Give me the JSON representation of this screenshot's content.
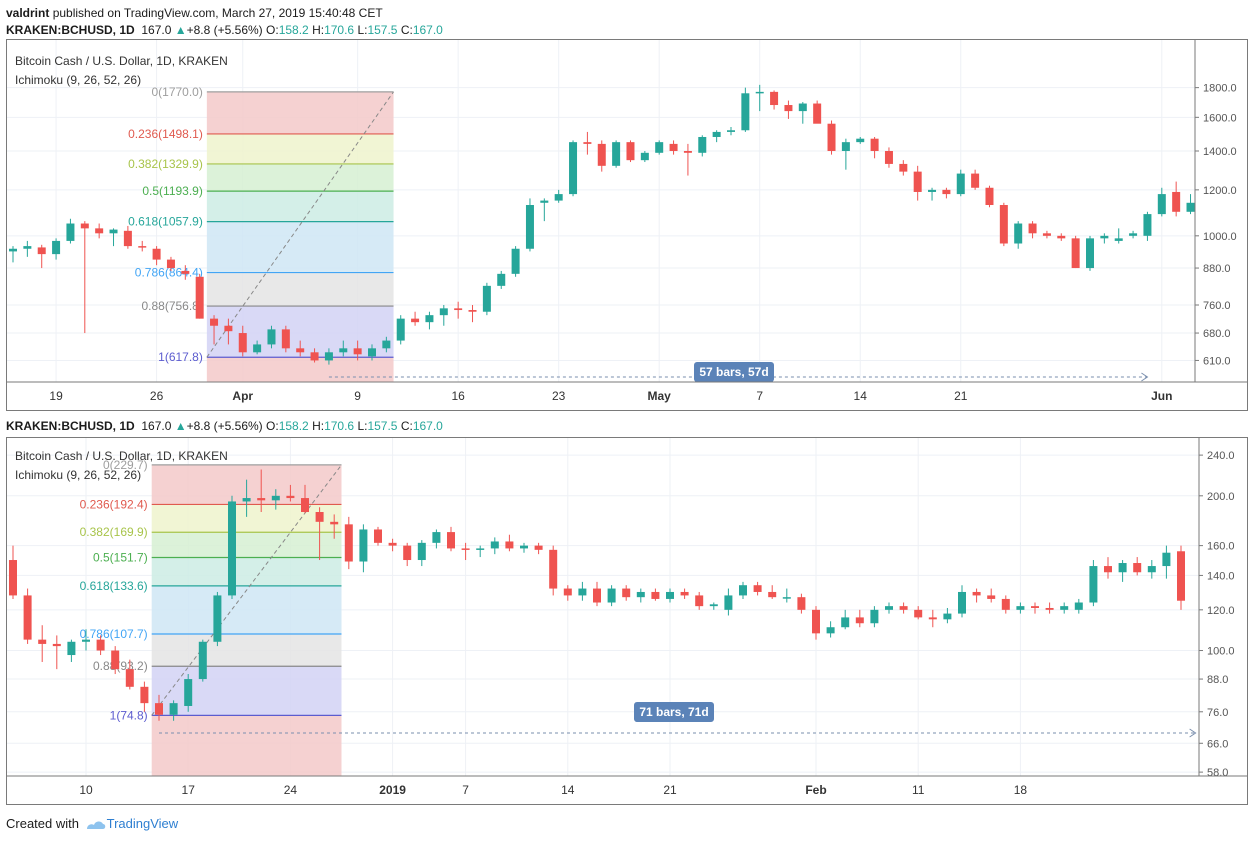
{
  "header": {
    "author": "valdrint",
    "published": "published on TradingView.com, March 27, 2019 15:40:48 CET"
  },
  "symbol_line": {
    "symbol": "KRAKEN:BCHUSD, 1D",
    "last": "167.0",
    "change": "+8.8 (+5.56%)",
    "o_label": "O:",
    "o": "158.2",
    "h_label": "H:",
    "h": "170.6",
    "l_label": "L:",
    "l": "157.5",
    "c_label": "C:",
    "c": "167.0"
  },
  "footer": {
    "created_with": "Created with",
    "brand": "TradingView"
  },
  "colors": {
    "up": "#26a69a",
    "down": "#ef5350",
    "grid": "#eef1f6",
    "axis_text": "#555555"
  },
  "chart_data": [
    {
      "type": "candlestick",
      "legend": [
        "Bitcoin Cash / U.S. Dollar, 1D, KRAKEN",
        "Ichimoku (9, 26, 52, 26)"
      ],
      "y_scale": "log",
      "ylim": [
        560,
        1900
      ],
      "y_ticks": [
        "1800.0",
        "1600.0",
        "1400.0",
        "1200.0",
        "1000.0",
        "880.0",
        "760.0",
        "680.0",
        "610.0"
      ],
      "x_ticks": [
        "19",
        "26",
        "Apr",
        "9",
        "16",
        "23",
        "May",
        "7",
        "14",
        "21",
        "Jun"
      ],
      "x_tick_index": [
        3,
        10,
        16,
        24,
        31,
        38,
        45,
        52,
        59,
        66,
        80
      ],
      "fib_levels": [
        {
          "ratio": "0",
          "price": 1770.0,
          "label": "0(1770.0)",
          "color": "#9e9e9e",
          "fill": "#f3c9c9"
        },
        {
          "ratio": "0.236",
          "price": 1498.1,
          "label": "0.236(1498.1)",
          "color": "#e05a4f",
          "fill": "#eef3cc"
        },
        {
          "ratio": "0.382",
          "price": 1329.9,
          "label": "0.382(1329.9)",
          "color": "#a8c44a",
          "fill": "#d6f0d2"
        },
        {
          "ratio": "0.5",
          "price": 1193.9,
          "label": "0.5(1193.9)",
          "color": "#4caf50",
          "fill": "#cdece4"
        },
        {
          "ratio": "0.618",
          "price": 1057.9,
          "label": "0.618(1057.9)",
          "color": "#26a69a",
          "fill": "#cfe6f5"
        },
        {
          "ratio": "0.786",
          "price": 864.4,
          "label": "0.786(864.4)",
          "color": "#42a5f5",
          "fill": "#e4e4e4"
        },
        {
          "ratio": "0.88",
          "price": 756.8,
          "label": "0.88(756.8)",
          "color": "#888888",
          "fill": "#d2d2f5"
        },
        {
          "ratio": "1",
          "price": 617.8,
          "label": "1(617.8)",
          "color": "#5c5ccf",
          "fill": ""
        }
      ],
      "fib_start_index": 14,
      "fib_end_index": 26,
      "range_label": "57 bars, 57d",
      "range_start_index": 22,
      "range_end_index": 79,
      "candles": [
        [
          940,
          960,
          900,
          950
        ],
        [
          950,
          980,
          920,
          960
        ],
        [
          955,
          965,
          880,
          930
        ],
        [
          930,
          990,
          910,
          980
        ],
        [
          980,
          1070,
          970,
          1050
        ],
        [
          1050,
          1060,
          680,
          1030
        ],
        [
          1030,
          1050,
          990,
          1010
        ],
        [
          1010,
          1030,
          960,
          1025
        ],
        [
          1020,
          1040,
          950,
          960
        ],
        [
          960,
          980,
          940,
          955
        ],
        [
          950,
          960,
          890,
          910
        ],
        [
          910,
          920,
          870,
          880
        ],
        [
          870,
          890,
          840,
          860
        ],
        [
          850,
          860,
          720,
          720
        ],
        [
          720,
          730,
          650,
          700
        ],
        [
          700,
          720,
          650,
          685
        ],
        [
          680,
          700,
          620,
          630
        ],
        [
          630,
          660,
          625,
          650
        ],
        [
          650,
          700,
          640,
          690
        ],
        [
          690,
          700,
          630,
          640
        ],
        [
          640,
          660,
          620,
          630
        ],
        [
          630,
          640,
          605,
          610
        ],
        [
          610,
          640,
          600,
          630
        ],
        [
          630,
          660,
          620,
          640
        ],
        [
          640,
          660,
          610,
          625
        ],
        [
          620,
          650,
          610,
          640
        ],
        [
          640,
          670,
          630,
          660
        ],
        [
          660,
          730,
          650,
          720
        ],
        [
          720,
          740,
          700,
          710
        ],
        [
          710,
          740,
          690,
          730
        ],
        [
          730,
          760,
          700,
          750
        ],
        [
          750,
          770,
          720,
          745
        ],
        [
          745,
          760,
          710,
          740
        ],
        [
          740,
          830,
          730,
          820
        ],
        [
          820,
          870,
          810,
          860
        ],
        [
          860,
          960,
          850,
          950
        ],
        [
          950,
          1160,
          940,
          1130
        ],
        [
          1140,
          1160,
          1060,
          1150
        ],
        [
          1150,
          1200,
          1140,
          1180
        ],
        [
          1180,
          1460,
          1170,
          1450
        ],
        [
          1450,
          1510,
          1380,
          1440
        ],
        [
          1440,
          1460,
          1290,
          1320
        ],
        [
          1320,
          1460,
          1310,
          1450
        ],
        [
          1450,
          1460,
          1340,
          1350
        ],
        [
          1350,
          1400,
          1340,
          1390
        ],
        [
          1390,
          1460,
          1380,
          1450
        ],
        [
          1440,
          1460,
          1380,
          1400
        ],
        [
          1400,
          1440,
          1270,
          1390
        ],
        [
          1390,
          1490,
          1370,
          1480
        ],
        [
          1480,
          1520,
          1450,
          1510
        ],
        [
          1510,
          1540,
          1490,
          1520
        ],
        [
          1520,
          1800,
          1510,
          1760
        ],
        [
          1760,
          1820,
          1640,
          1770
        ],
        [
          1770,
          1780,
          1650,
          1680
        ],
        [
          1680,
          1710,
          1590,
          1640
        ],
        [
          1640,
          1700,
          1560,
          1690
        ],
        [
          1690,
          1710,
          1570,
          1560
        ],
        [
          1560,
          1580,
          1380,
          1400
        ],
        [
          1400,
          1470,
          1300,
          1450
        ],
        [
          1450,
          1480,
          1440,
          1470
        ],
        [
          1470,
          1480,
          1360,
          1400
        ],
        [
          1400,
          1420,
          1310,
          1330
        ],
        [
          1330,
          1350,
          1270,
          1290
        ],
        [
          1290,
          1320,
          1150,
          1190
        ],
        [
          1190,
          1210,
          1150,
          1200
        ],
        [
          1200,
          1210,
          1160,
          1180
        ],
        [
          1180,
          1300,
          1170,
          1280
        ],
        [
          1280,
          1300,
          1200,
          1210
        ],
        [
          1210,
          1220,
          1120,
          1130
        ],
        [
          1130,
          1140,
          960,
          970
        ],
        [
          970,
          1060,
          950,
          1050
        ],
        [
          1050,
          1060,
          990,
          1010
        ],
        [
          1010,
          1020,
          990,
          1000
        ],
        [
          1000,
          1010,
          980,
          990
        ],
        [
          990,
          1000,
          880,
          880
        ],
        [
          880,
          1000,
          870,
          990
        ],
        [
          990,
          1010,
          970,
          1000
        ],
        [
          980,
          1030,
          970,
          990
        ],
        [
          1000,
          1020,
          990,
          1010
        ],
        [
          1000,
          1100,
          980,
          1090
        ],
        [
          1090,
          1210,
          1080,
          1180
        ],
        [
          1190,
          1240,
          1080,
          1100
        ],
        [
          1100,
          1180,
          1090,
          1140
        ]
      ]
    },
    {
      "type": "candlestick",
      "legend": [
        "Bitcoin Cash / U.S. Dollar, 1D, KRAKEN",
        "Ichimoku (9, 26, 52, 26)"
      ],
      "y_scale": "log",
      "ylim": [
        57,
        250
      ],
      "y_ticks": [
        "240.0",
        "200.0",
        "160.0",
        "140.0",
        "120.0",
        "100.0",
        "88.0",
        "76.0",
        "66.0",
        "58.0"
      ],
      "x_ticks": [
        "10",
        "17",
        "24",
        "2019",
        "7",
        "14",
        "21",
        "Feb",
        "11",
        "18"
      ],
      "x_tick_index": [
        5,
        12,
        19,
        26,
        31,
        38,
        45,
        55,
        62,
        69
      ],
      "fib_levels": [
        {
          "ratio": "0",
          "price": 229.7,
          "label": "0(229.7)",
          "color": "#9e9e9e",
          "fill": "#f3c9c9"
        },
        {
          "ratio": "0.236",
          "price": 192.4,
          "label": "0.236(192.4)",
          "color": "#e05a4f",
          "fill": "#eef3cc"
        },
        {
          "ratio": "0.382",
          "price": 169.9,
          "label": "0.382(169.9)",
          "color": "#a8c44a",
          "fill": "#d6f0d2"
        },
        {
          "ratio": "0.5",
          "price": 151.7,
          "label": "0.5(151.7)",
          "color": "#4caf50",
          "fill": "#cdece4"
        },
        {
          "ratio": "0.618",
          "price": 133.6,
          "label": "0.618(133.6)",
          "color": "#26a69a",
          "fill": "#cfe6f5"
        },
        {
          "ratio": "0.786",
          "price": 107.7,
          "label": "0.786(107.7)",
          "color": "#42a5f5",
          "fill": "#e4e4e4"
        },
        {
          "ratio": "0.88",
          "price": 93.2,
          "label": "0.88(93.2)",
          "color": "#888888",
          "fill": "#d2d2f5"
        },
        {
          "ratio": "1",
          "price": 74.8,
          "label": "1(74.8)",
          "color": "#5c5ccf",
          "fill": ""
        }
      ],
      "fib_start_index": 10,
      "fib_end_index": 22,
      "range_label": "71 bars, 71d",
      "range_start_index": 10,
      "range_end_index": 81,
      "candles": [
        [
          150,
          160,
          126,
          128
        ],
        [
          128,
          132,
          103,
          105
        ],
        [
          105,
          112,
          95,
          103
        ],
        [
          103,
          107,
          92,
          102
        ],
        [
          98,
          105,
          95,
          104
        ],
        [
          104,
          110,
          100,
          105
        ],
        [
          105,
          107,
          98,
          100
        ],
        [
          100,
          102,
          90,
          92
        ],
        [
          92,
          96,
          84,
          85
        ],
        [
          85,
          87,
          76,
          79
        ],
        [
          79,
          82,
          73,
          75
        ],
        [
          75,
          80,
          73,
          79
        ],
        [
          78,
          90,
          76,
          88
        ],
        [
          88,
          105,
          87,
          104
        ],
        [
          104,
          130,
          102,
          128
        ],
        [
          128,
          200,
          126,
          195
        ],
        [
          195,
          215,
          182,
          198
        ],
        [
          198,
          225,
          186,
          196
        ],
        [
          196,
          206,
          188,
          200
        ],
        [
          200,
          210,
          195,
          198
        ],
        [
          198,
          210,
          185,
          186
        ],
        [
          186,
          190,
          150,
          178
        ],
        [
          178,
          184,
          165,
          176
        ],
        [
          176,
          182,
          144,
          149
        ],
        [
          149,
          176,
          142,
          172
        ],
        [
          172,
          174,
          160,
          162
        ],
        [
          162,
          165,
          156,
          160
        ],
        [
          160,
          162,
          146,
          150
        ],
        [
          150,
          164,
          146,
          162
        ],
        [
          162,
          172,
          158,
          170
        ],
        [
          170,
          174,
          156,
          158
        ],
        [
          158,
          162,
          150,
          157
        ],
        [
          157,
          160,
          152,
          158
        ],
        [
          158,
          166,
          154,
          163
        ],
        [
          163,
          168,
          156,
          158
        ],
        [
          158,
          162,
          155,
          160
        ],
        [
          160,
          162,
          154,
          157
        ],
        [
          157,
          160,
          128,
          132
        ],
        [
          132,
          134,
          125,
          128
        ],
        [
          128,
          136,
          125,
          132
        ],
        [
          132,
          136,
          122,
          124
        ],
        [
          124,
          134,
          122,
          132
        ],
        [
          132,
          134,
          125,
          127
        ],
        [
          127,
          132,
          124,
          130
        ],
        [
          130,
          132,
          125,
          126
        ],
        [
          126,
          132,
          124,
          130
        ],
        [
          130,
          132,
          126,
          128
        ],
        [
          128,
          130,
          120,
          122
        ],
        [
          122,
          124,
          120,
          123
        ],
        [
          120,
          132,
          117,
          128
        ],
        [
          128,
          136,
          126,
          134
        ],
        [
          134,
          136,
          128,
          130
        ],
        [
          130,
          134,
          126,
          127
        ],
        [
          127,
          132,
          124,
          127
        ],
        [
          127,
          129,
          118,
          120
        ],
        [
          120,
          122,
          105,
          108
        ],
        [
          108,
          114,
          106,
          111
        ],
        [
          111,
          120,
          110,
          116
        ],
        [
          116,
          120,
          111,
          113
        ],
        [
          113,
          122,
          111,
          120
        ],
        [
          120,
          124,
          118,
          122
        ],
        [
          122,
          124,
          118,
          120
        ],
        [
          120,
          122,
          115,
          116
        ],
        [
          116,
          120,
          111,
          115
        ],
        [
          115,
          121,
          113,
          118
        ],
        [
          118,
          134,
          116,
          130
        ],
        [
          130,
          132,
          124,
          128
        ],
        [
          128,
          132,
          124,
          126
        ],
        [
          126,
          128,
          118,
          120
        ],
        [
          120,
          124,
          118,
          122
        ],
        [
          122,
          124,
          118,
          121
        ],
        [
          121,
          124,
          118,
          120
        ],
        [
          120,
          124,
          118,
          122
        ],
        [
          120,
          126,
          118,
          124
        ],
        [
          124,
          150,
          122,
          146
        ],
        [
          146,
          152,
          138,
          142
        ],
        [
          142,
          150,
          136,
          148
        ],
        [
          148,
          152,
          140,
          142
        ],
        [
          142,
          150,
          138,
          146
        ],
        [
          146,
          160,
          138,
          155
        ],
        [
          156,
          160,
          120,
          125
        ]
      ]
    }
  ]
}
